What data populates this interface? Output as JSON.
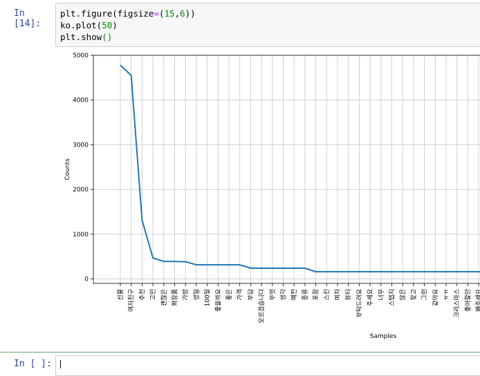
{
  "cell_prompt": "In [14]:",
  "code_lines": [
    [
      {
        "t": "plt.figure(figsize"
      },
      {
        "t": "=",
        "c": "op"
      },
      {
        "t": "("
      },
      {
        "t": "15",
        "c": "num"
      },
      {
        "t": ","
      },
      {
        "t": "6",
        "c": "num"
      },
      {
        "t": "))"
      }
    ],
    [
      {
        "t": "ko.plot("
      },
      {
        "t": "50",
        "c": "num"
      },
      {
        "t": ")"
      }
    ],
    [
      {
        "t": "plt.show"
      },
      {
        "t": "()",
        "c": "num"
      }
    ]
  ],
  "next_prompt": "In [ ]:",
  "chart_data": {
    "type": "line",
    "title": "",
    "xlabel": "Samples",
    "ylabel": "Counts",
    "ylim": [
      -100,
      5000
    ],
    "yticks": [
      0,
      1000,
      2000,
      3000,
      4000,
      5000
    ],
    "grid": true,
    "line_color": "#1f77b4",
    "categories": [
      "선물",
      "여자친구",
      "추천",
      "고민",
      "괜찮은",
      "화장품",
      "가방",
      "생일",
      "100일",
      "좋을까요",
      "좋은",
      "가격",
      "부담",
      "모르겠습니다",
      "무엇",
      "생각",
      "예전",
      "종류",
      "포함",
      "스킨",
      "여자",
      "뷰티",
      "부탁드려요",
      "주세요",
      "너무",
      "스탭지",
      "않은",
      "찾고",
      "그런",
      "같아요",
      "ㅠㅠ",
      "크리스마스",
      "좋아할만",
      "해주세요"
    ],
    "values": [
      4780,
      4550,
      1310,
      470,
      390,
      390,
      385,
      315,
      315,
      315,
      315,
      315,
      240,
      240,
      240,
      240,
      240,
      240,
      160,
      160,
      160,
      160,
      160,
      160,
      160,
      160,
      160,
      160,
      160,
      160,
      160,
      160,
      160,
      160
    ]
  }
}
